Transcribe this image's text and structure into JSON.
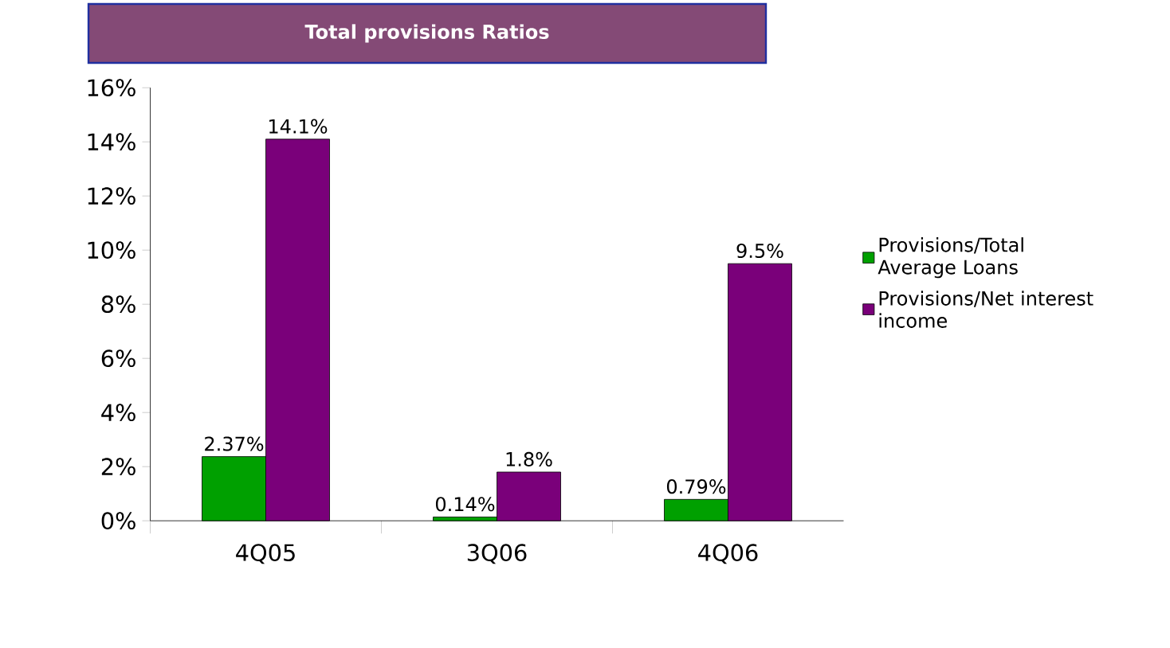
{
  "chart_data": {
    "type": "bar",
    "title": "Total provisions Ratios",
    "categories": [
      "4Q05",
      "3Q06",
      "4Q06"
    ],
    "series": [
      {
        "name": "Provisions/Total Average Loans",
        "color": "#00a000",
        "values": [
          2.37,
          0.14,
          0.79
        ],
        "value_labels": [
          "2.37%",
          "0.14%",
          "0.79%"
        ]
      },
      {
        "name": "Provisions/Net interest income",
        "color": "#7a007a",
        "values": [
          14.1,
          1.8,
          9.5
        ],
        "value_labels": [
          "14.1%",
          "1.8%",
          "9.5%"
        ]
      }
    ],
    "ylim": [
      0,
      16
    ],
    "yticks": [
      {
        "value": 0,
        "label": "0%"
      },
      {
        "value": 2,
        "label": "2%"
      },
      {
        "value": 4,
        "label": "4%"
      },
      {
        "value": 6,
        "label": "6%"
      },
      {
        "value": 8,
        "label": "8%"
      },
      {
        "value": 10,
        "label": "10%"
      },
      {
        "value": 12,
        "label": "12%"
      },
      {
        "value": 14,
        "label": "14%"
      },
      {
        "value": 16,
        "label": "16%"
      }
    ],
    "legend": "right",
    "grid": false
  }
}
